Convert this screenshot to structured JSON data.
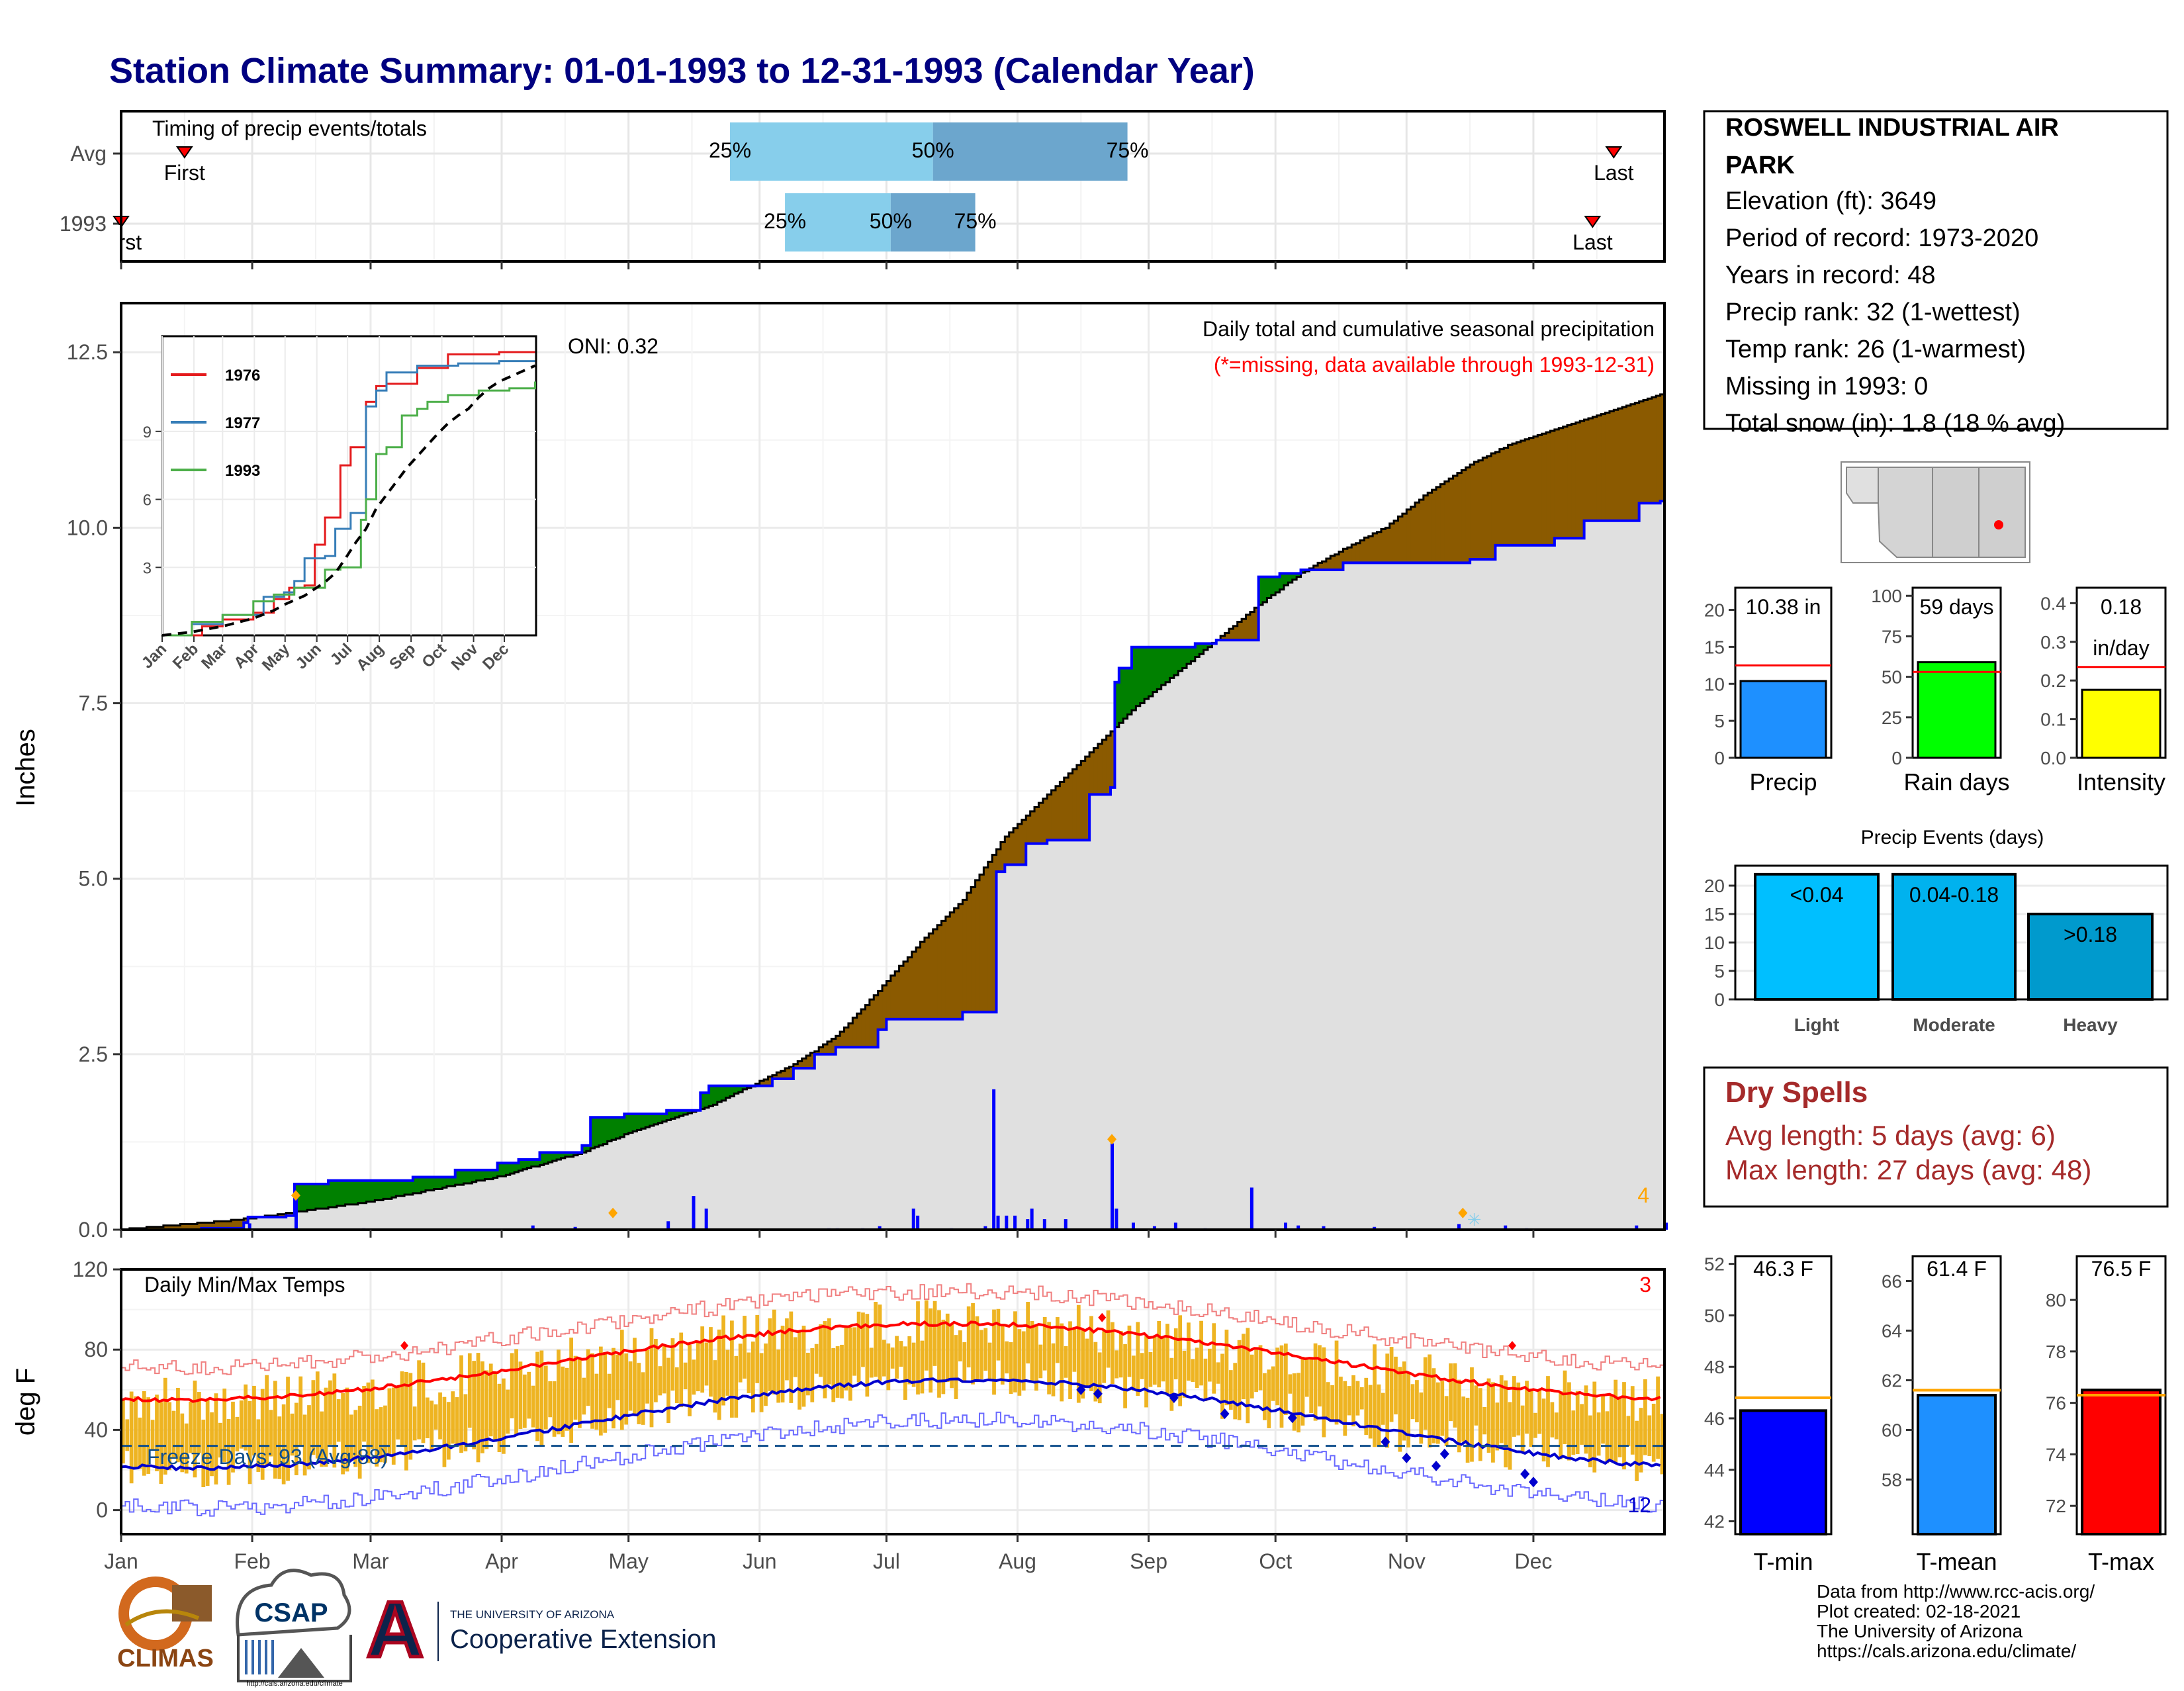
{
  "title": "Station Climate Summary: 01-01-1993 to 12-31-1993 (Calendar Year)",
  "colors": {
    "title": "#000080",
    "green": "#008000",
    "brown": "#8B5A00",
    "cum_fill": "#E0E0E0",
    "bar_blue": "#0000FF",
    "red": "#FF0000",
    "gold": "#EEB422",
    "q_light": "#87CEEB",
    "q_dark": "#6CA6CD"
  },
  "timing": {
    "title": "Timing of precip events/totals",
    "rows": [
      {
        "label": "Avg",
        "first_label": "First",
        "last_label": "Last",
        "first_day": 16,
        "last_day": 354,
        "q25_day": 145,
        "q50_day": 193,
        "q75_day": 239,
        "q25": "25%",
        "q50": "50%",
        "q75": "75%"
      },
      {
        "label": "1993",
        "first_label": "First",
        "last_label": "Last",
        "first_day": 1,
        "last_day": 349,
        "q25_day": 158,
        "q50_day": 183,
        "q75_day": 203,
        "q25": "25%",
        "q50": "50%",
        "q75": "75%"
      }
    ]
  },
  "precip_panel": {
    "ylabel": "Inches",
    "yticks": [
      "0.0",
      "2.5",
      "5.0",
      "7.5",
      "10.0",
      "12.5"
    ],
    "note1": "Daily total and cumulative seasonal precipitation",
    "note2": "(*=missing, data available through 1993-12-31)",
    "oni": "ONI: 0.32",
    "count_label": "4"
  },
  "inset": {
    "legend": [
      "1976",
      "1977",
      "1993"
    ],
    "yticks": [
      "3",
      "6",
      "9"
    ],
    "months": [
      "Jan",
      "Feb",
      "Mar",
      "Apr",
      "May",
      "Jun",
      "Jul",
      "Aug",
      "Sep",
      "Oct",
      "Nov",
      "Dec"
    ]
  },
  "temp_panel": {
    "ylabel": "deg F",
    "title": "Daily Min/Max Temps",
    "yticks": [
      "0",
      "40",
      "80",
      "120"
    ],
    "freeze": "Freeze Days: 93 (Avg:88)",
    "count_hi": "3",
    "count_lo": "12"
  },
  "months": [
    "Jan",
    "Feb",
    "Mar",
    "Apr",
    "May",
    "Jun",
    "Jul",
    "Aug",
    "Sep",
    "Oct",
    "Nov",
    "Dec"
  ],
  "station": {
    "name_line1": "ROSWELL INDUSTRIAL AIR",
    "name_line2": "PARK",
    "lines": [
      "Elevation (ft): 3649",
      "Period of record: 1973-2020",
      "Years in record: 48",
      "Precip rank: 32 (1-wettest)",
      "Temp rank: 26 (1-warmest)",
      "Missing in 1993: 0",
      "Total snow (in): 1.8 (18 % avg)"
    ]
  },
  "summary_bars": [
    {
      "label": "Precip",
      "value_label": "10.38 in",
      "value": 10.38,
      "avg": 12.5,
      "ymax": 23,
      "ticks": [
        "0",
        "5",
        "10",
        "15",
        "20"
      ],
      "tickvals": [
        0,
        5,
        10,
        15,
        20
      ],
      "fill": "#1E90FF"
    },
    {
      "label": "Rain days",
      "value_label": "59 days",
      "value": 59,
      "avg": 53,
      "ymax": 105,
      "ticks": [
        "0",
        "25",
        "50",
        "75",
        "100"
      ],
      "tickvals": [
        0,
        25,
        50,
        75,
        100
      ],
      "fill": "#00FF00"
    },
    {
      "label": "Intensity",
      "value_label": "0.18",
      "value_label2": "in/day",
      "value": 0.176,
      "avg": 0.235,
      "ymax": 0.44,
      "ticks": [
        "0.0",
        "0.1",
        "0.2",
        "0.3",
        "0.4"
      ],
      "tickvals": [
        0,
        0.1,
        0.2,
        0.3,
        0.4
      ],
      "fill": "#FFFF00"
    }
  ],
  "events": {
    "title": "Precip Events (days)",
    "yticks": [
      "0",
      "5",
      "10",
      "15",
      "20"
    ],
    "bars": [
      {
        "label": "Light",
        "range": "<0.04",
        "value": 22,
        "fill": "#00BFFF"
      },
      {
        "label": "Moderate",
        "range": "0.04-0.18",
        "value": 22,
        "fill": "#00B2EE"
      },
      {
        "label": "Heavy",
        "range": ">0.18",
        "value": 15,
        "fill": "#009ACD"
      }
    ]
  },
  "dry_spells": {
    "title": "Dry Spells",
    "avg_length": "Avg length: 5 days (avg: 6)",
    "max_length": "Max length: 27 days (avg: 48)"
  },
  "temp_bars": [
    {
      "label": "T-min",
      "value_label": "46.3 F",
      "value": 46.3,
      "avg": 46.8,
      "ymin": 41.5,
      "ymax": 52.3,
      "ticks": [
        "42",
        "44",
        "46",
        "48",
        "50",
        "52"
      ],
      "tickvals": [
        42,
        44,
        46,
        48,
        50,
        52
      ],
      "fill": "#0000FF"
    },
    {
      "label": "T-mean",
      "value_label": "61.4 F",
      "value": 61.4,
      "avg": 61.6,
      "ymin": 55.8,
      "ymax": 67.0,
      "ticks": [
        "58",
        "60",
        "62",
        "64",
        "66"
      ],
      "tickvals": [
        58,
        60,
        62,
        64,
        66
      ],
      "fill": "#1E90FF"
    },
    {
      "label": "T-max",
      "value_label": "76.5 F",
      "value": 76.5,
      "avg": 76.3,
      "ymin": 70.9,
      "ymax": 81.7,
      "ticks": [
        "72",
        "74",
        "76",
        "78",
        "80"
      ],
      "tickvals": [
        72,
        74,
        76,
        78,
        80
      ],
      "fill": "#FF0000"
    }
  ],
  "credits": [
    "Data from http://www.rcc-acis.org/",
    "Plot created: 02-18-2021",
    "The University of Arizona",
    "https://cals.arizona.edu/climate/"
  ],
  "logos": {
    "climas": "CLIMAS",
    "csap": "CSAP",
    "csap_url": "http://cals.arizona.edu/climate",
    "ua_letter": "A",
    "ua_small": "THE UNIVERSITY OF ARIZONA",
    "ua_name": "Cooperative Extension"
  },
  "chart_data": [
    {
      "type": "area",
      "name": "cumulative precipitation 1993 vs average",
      "x_unit": "day of year",
      "ylim": [
        0,
        13.2
      ],
      "cum_1993": [
        [
          1,
          0.0
        ],
        [
          20,
          0.02
        ],
        [
          30,
          0.1
        ],
        [
          31,
          0.18
        ],
        [
          40,
          0.2
        ],
        [
          42,
          0.65
        ],
        [
          50,
          0.7
        ],
        [
          70,
          0.75
        ],
        [
          80,
          0.85
        ],
        [
          90,
          0.95
        ],
        [
          95,
          1.0
        ],
        [
          100,
          1.1
        ],
        [
          110,
          1.2
        ],
        [
          112,
          1.6
        ],
        [
          120,
          1.65
        ],
        [
          130,
          1.7
        ],
        [
          138,
          1.95
        ],
        [
          140,
          2.05
        ],
        [
          150,
          2.05
        ],
        [
          155,
          2.15
        ],
        [
          160,
          2.3
        ],
        [
          165,
          2.5
        ],
        [
          170,
          2.6
        ],
        [
          175,
          2.6
        ],
        [
          180,
          2.85
        ],
        [
          182,
          3.0
        ],
        [
          190,
          3.0
        ],
        [
          200,
          3.1
        ],
        [
          207,
          3.1
        ],
        [
          208,
          5.1
        ],
        [
          210,
          5.2
        ],
        [
          215,
          5.5
        ],
        [
          220,
          5.55
        ],
        [
          230,
          6.2
        ],
        [
          235,
          6.3
        ],
        [
          236,
          7.8
        ],
        [
          237,
          8.0
        ],
        [
          240,
          8.3
        ],
        [
          255,
          8.35
        ],
        [
          260,
          8.4
        ],
        [
          270,
          9.3
        ],
        [
          275,
          9.35
        ],
        [
          280,
          9.4
        ],
        [
          290,
          9.5
        ],
        [
          300,
          9.5
        ],
        [
          320,
          9.55
        ],
        [
          326,
          9.75
        ],
        [
          340,
          9.85
        ],
        [
          347,
          10.1
        ],
        [
          360,
          10.35
        ],
        [
          365,
          10.38
        ]
      ],
      "cum_avg": [
        [
          1,
          0.0
        ],
        [
          30,
          0.15
        ],
        [
          60,
          0.4
        ],
        [
          90,
          0.75
        ],
        [
          110,
          1.1
        ],
        [
          120,
          1.35
        ],
        [
          140,
          1.75
        ],
        [
          160,
          2.35
        ],
        [
          170,
          2.75
        ],
        [
          180,
          3.4
        ],
        [
          190,
          4.1
        ],
        [
          200,
          4.7
        ],
        [
          210,
          5.6
        ],
        [
          220,
          6.2
        ],
        [
          230,
          6.8
        ],
        [
          240,
          7.4
        ],
        [
          250,
          7.9
        ],
        [
          260,
          8.4
        ],
        [
          270,
          8.9
        ],
        [
          280,
          9.35
        ],
        [
          290,
          9.7
        ],
        [
          300,
          10.0
        ],
        [
          310,
          10.5
        ],
        [
          320,
          10.9
        ],
        [
          330,
          11.2
        ],
        [
          340,
          11.4
        ],
        [
          350,
          11.6
        ],
        [
          360,
          11.8
        ],
        [
          365,
          11.9
        ]
      ],
      "daily_bars": [
        [
          14,
          0.02
        ],
        [
          25,
          0.01
        ],
        [
          31,
          0.09
        ],
        [
          42,
          0.45
        ],
        [
          52,
          0.02
        ],
        [
          60,
          0.02
        ],
        [
          72,
          0.01
        ],
        [
          88,
          0.06
        ],
        [
          98,
          0.03
        ],
        [
          108,
          0.01
        ],
        [
          119,
          0.01
        ],
        [
          130,
          0.12
        ],
        [
          136,
          0.48
        ],
        [
          140,
          0.01
        ],
        [
          148,
          0.35
        ],
        [
          160,
          0.01
        ],
        [
          167,
          0.05
        ],
        [
          175,
          0.02
        ],
        [
          182,
          0.03
        ],
        [
          185,
          0.02
        ],
        [
          191,
          0.03
        ],
        [
          195,
          0.11
        ],
        [
          221,
          0.18
        ],
        [
          223,
          0.1
        ],
        [
          227,
          0.01
        ],
        [
          232,
          0.03
        ],
        [
          244,
          0.01
        ],
        [
          251,
          0.01
        ],
        [
          257,
          0.02
        ],
        [
          265,
          0.01
        ],
        [
          267,
          0.05
        ],
        [
          272,
          0.02
        ],
        [
          277,
          0.01
        ],
        [
          293,
          0.01
        ],
        [
          301,
          0.03
        ],
        [
          308,
          0.01
        ],
        [
          310,
          0.03
        ],
        [
          313,
          2.0
        ],
        [
          316,
          0.26
        ],
        [
          319,
          0.01
        ],
        [
          321,
          0.01
        ],
        [
          326,
          0.01
        ],
        [
          328,
          0.01
        ],
        [
          330,
          0.01
        ],
        [
          334,
          0.18
        ],
        [
          338,
          0.05
        ],
        [
          350,
          0.18
        ],
        [
          355,
          0.03
        ],
        [
          358,
          0.01
        ],
        [
          360,
          0.01
        ],
        [
          370,
          0.06
        ],
        [
          395,
          0.01
        ],
        [
          405,
          0.06
        ],
        [
          410,
          0.05
        ],
        [
          430,
          0.01
        ],
        [
          440,
          0.03
        ],
        [
          450,
          0.05
        ],
        [
          455,
          0.02
        ]
      ],
      "bars": [
        [
          12,
          0.02
        ],
        [
          31,
          0.09
        ],
        [
          42,
          0.45
        ],
        [
          58,
          0.02
        ],
        [
          75,
          0.01
        ],
        [
          98,
          0.06
        ],
        [
          108,
          0.04
        ],
        [
          117,
          0.01
        ],
        [
          120,
          0.01
        ],
        [
          130,
          0.12
        ],
        [
          136,
          0.48
        ],
        [
          139,
          0.3
        ],
        [
          140,
          0.01
        ],
        [
          150,
          0.01
        ],
        [
          158,
          0.01
        ],
        [
          165,
          0.01
        ],
        [
          168,
          0.02
        ],
        [
          170,
          0.02
        ],
        [
          176,
          0.02
        ],
        [
          180,
          0.05
        ],
        [
          188,
          0.3
        ],
        [
          189,
          0.2
        ],
        [
          197,
          0.02
        ],
        [
          205,
          0.05
        ],
        [
          207,
          2.0
        ],
        [
          208,
          0.2
        ],
        [
          210,
          0.2
        ],
        [
          212,
          0.2
        ],
        [
          215,
          0.15
        ],
        [
          216,
          0.3
        ],
        [
          219,
          0.15
        ],
        [
          224,
          0.15
        ],
        [
          235,
          1.23
        ],
        [
          236,
          0.3
        ],
        [
          240,
          0.1
        ],
        [
          245,
          0.05
        ],
        [
          250,
          0.1
        ],
        [
          257,
          0.02
        ],
        [
          268,
          0.6
        ],
        [
          276,
          0.1
        ],
        [
          279,
          0.06
        ],
        [
          285,
          0.05
        ],
        [
          297,
          0.04
        ],
        [
          317,
          0.08
        ],
        [
          322,
          0.01
        ],
        [
          328,
          0.06
        ],
        [
          333,
          0.02
        ],
        [
          350,
          0.01
        ],
        [
          353,
          0.01
        ],
        [
          357,
          0.01
        ],
        [
          359,
          0.06
        ],
        [
          366,
          0.1
        ]
      ],
      "ticks": [
        0,
        2.5,
        5.0,
        7.5,
        10.0,
        12.5
      ]
    },
    {
      "type": "line",
      "name": "inset cumulative precipitation comparison",
      "series": [
        {
          "name": "1976",
          "points": [
            [
              1,
              0
            ],
            [
              40,
              0.4
            ],
            [
              60,
              0.7
            ],
            [
              90,
              1.0
            ],
            [
              110,
              1.6
            ],
            [
              125,
              2.1
            ],
            [
              140,
              2.2
            ],
            [
              150,
              4.0
            ],
            [
              160,
              5.2
            ],
            [
              175,
              7.5
            ],
            [
              185,
              8.3
            ],
            [
              200,
              10.3
            ],
            [
              210,
              11.0
            ],
            [
              220,
              11.1
            ],
            [
              250,
              11.8
            ],
            [
              280,
              12.4
            ],
            [
              330,
              12.5
            ]
          ]
        },
        {
          "name": "1977",
          "points": [
            [
              1,
              0
            ],
            [
              30,
              0.5
            ],
            [
              60,
              0.9
            ],
            [
              100,
              1.7
            ],
            [
              120,
              1.9
            ],
            [
              130,
              2.4
            ],
            [
              140,
              3.4
            ],
            [
              160,
              3.5
            ],
            [
              170,
              4.7
            ],
            [
              185,
              5.4
            ],
            [
              200,
              10.1
            ],
            [
              210,
              10.8
            ],
            [
              220,
              11.6
            ],
            [
              250,
              11.9
            ],
            [
              290,
              12.0
            ],
            [
              330,
              12.1
            ]
          ]
        },
        {
          "name": "1993",
          "points": [
            [
              1,
              0
            ],
            [
              30,
              0.6
            ],
            [
              60,
              0.9
            ],
            [
              90,
              1.5
            ],
            [
              110,
              1.8
            ],
            [
              130,
              2.1
            ],
            [
              150,
              2.1
            ],
            [
              160,
              2.9
            ],
            [
              175,
              3.0
            ],
            [
              195,
              5.1
            ],
            [
              200,
              6.0
            ],
            [
              210,
              8.0
            ],
            [
              220,
              8.3
            ],
            [
              235,
              9.7
            ],
            [
              250,
              10.0
            ],
            [
              260,
              10.3
            ],
            [
              280,
              10.6
            ],
            [
              310,
              10.8
            ],
            [
              340,
              10.9
            ],
            [
              365,
              11.2
            ]
          ]
        }
      ],
      "ylim": [
        0,
        13.2
      ]
    },
    {
      "type": "bar",
      "name": "daily temperature range",
      "ylim": [
        -12,
        120
      ],
      "yticks": [
        0,
        40,
        80,
        120
      ]
    }
  ]
}
